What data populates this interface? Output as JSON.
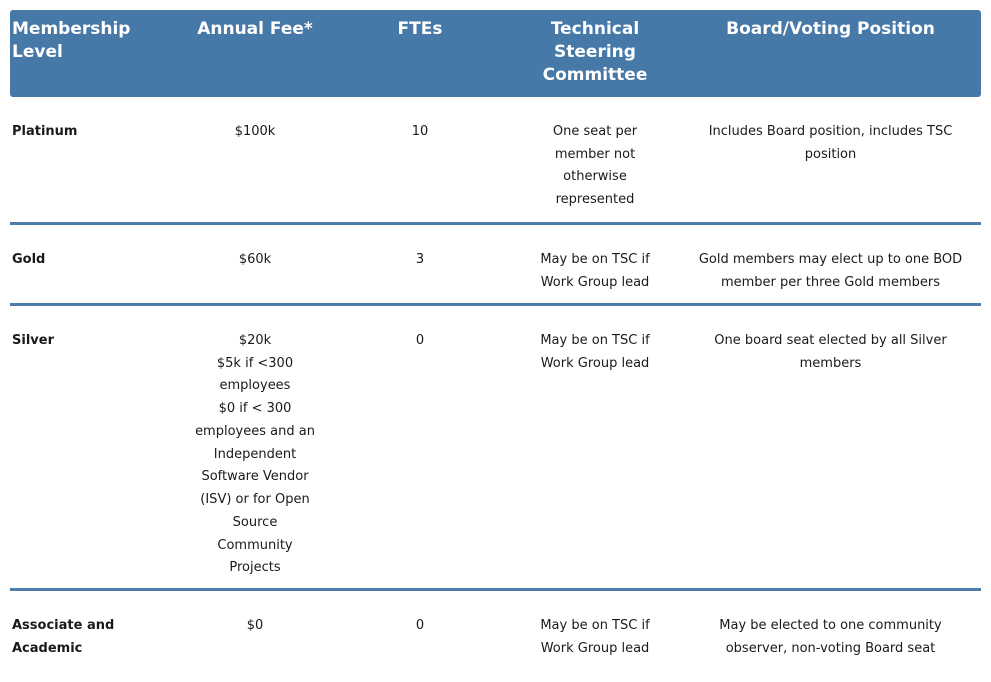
{
  "theme": {
    "header_bg": "#4678a8",
    "header_text": "#ffffff",
    "divider": "#4d7ea9",
    "body_text": "#1a1a1a"
  },
  "table": {
    "columns": [
      {
        "id": "level",
        "label": "Membership\nLevel"
      },
      {
        "id": "fee",
        "label": "Annual Fee*"
      },
      {
        "id": "ftes",
        "label": "FTEs"
      },
      {
        "id": "tsc",
        "label": "Technical\nSteering\nCommittee"
      },
      {
        "id": "board",
        "label": "Board/Voting Position"
      }
    ],
    "rows": [
      {
        "level": "Platinum",
        "fee": "$100k",
        "ftes": "10",
        "tsc": "One seat per\nmember not\notherwise\nrepresented",
        "board": "Includes Board position, includes TSC\nposition"
      },
      {
        "level": "Gold",
        "fee": "$60k",
        "ftes": "3",
        "tsc": "May be on TSC if\nWork Group lead",
        "board": "Gold members may elect up to one BOD\nmember per three Gold members"
      },
      {
        "level": "Silver",
        "fee": "$20k\n$5k if <300\nemployees\n$0 if < 300\nemployees and an\nIndependent\nSoftware Vendor\n(ISV) or for Open\nSource\nCommunity\nProjects",
        "ftes": "0",
        "tsc": "May be on TSC if\nWork Group lead",
        "board": "One board seat elected by all Silver\nmembers"
      },
      {
        "level": "Associate and\nAcademic",
        "fee": "$0",
        "ftes": "0",
        "tsc": "May be on TSC if\nWork Group lead",
        "board": "May be elected to one community\nobserver, non-voting Board seat"
      }
    ]
  }
}
